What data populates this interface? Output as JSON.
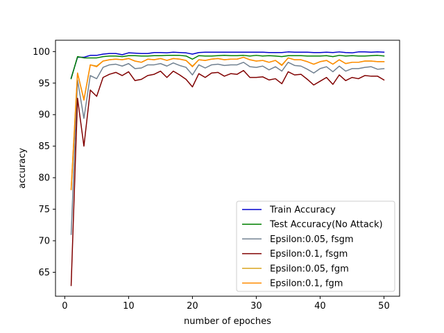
{
  "chart_data": {
    "type": "line",
    "title": "",
    "xlabel": "number of epoches",
    "ylabel": "accuracy",
    "xlim": [
      -1.45,
      52.45
    ],
    "ylim": [
      61.2,
      101.8
    ],
    "xticks": [
      0,
      10,
      20,
      30,
      40,
      50
    ],
    "yticks": [
      65,
      70,
      75,
      80,
      85,
      90,
      95,
      100
    ],
    "grid": false,
    "legend_position": "lower-right",
    "x": [
      1,
      2,
      3,
      4,
      5,
      6,
      7,
      8,
      9,
      10,
      11,
      12,
      13,
      14,
      15,
      16,
      17,
      18,
      19,
      20,
      21,
      22,
      23,
      24,
      25,
      26,
      27,
      28,
      29,
      30,
      31,
      32,
      33,
      34,
      35,
      36,
      37,
      38,
      39,
      40,
      41,
      42,
      43,
      44,
      45,
      46,
      47,
      48,
      49,
      50
    ],
    "series": [
      {
        "name": "Train Accuracy",
        "color": "#0000cd",
        "values": [
          95.8,
          99.1,
          99.1,
          99.4,
          99.4,
          99.6,
          99.7,
          99.7,
          99.5,
          99.8,
          99.75,
          99.7,
          99.7,
          99.85,
          99.85,
          99.8,
          99.9,
          99.85,
          99.8,
          99.6,
          99.85,
          99.9,
          99.9,
          99.9,
          99.9,
          99.9,
          99.9,
          99.9,
          99.9,
          99.9,
          99.9,
          99.85,
          99.85,
          99.85,
          99.95,
          99.9,
          99.9,
          99.9,
          99.85,
          99.85,
          99.9,
          99.85,
          99.95,
          99.85,
          99.8,
          99.95,
          99.95,
          99.9,
          99.95,
          99.9
        ]
      },
      {
        "name": "Test Accuracy(No Attack)",
        "color": "#008000",
        "values": [
          95.7,
          99.2,
          99.0,
          99.0,
          99.0,
          99.2,
          99.3,
          99.3,
          99.2,
          99.35,
          99.35,
          99.3,
          99.3,
          99.35,
          99.35,
          99.4,
          99.4,
          99.4,
          99.3,
          98.8,
          99.35,
          99.3,
          99.3,
          99.35,
          99.4,
          99.35,
          99.35,
          99.4,
          99.3,
          99.4,
          99.3,
          99.35,
          99.3,
          99.2,
          99.35,
          99.35,
          99.35,
          99.3,
          99.3,
          99.3,
          99.35,
          99.2,
          99.4,
          99.3,
          99.35,
          99.3,
          99.3,
          99.35,
          99.4,
          99.3
        ]
      },
      {
        "name": "Epsilon:0.05, fsgm",
        "color": "#708090",
        "values": [
          71.0,
          95.5,
          89.4,
          96.2,
          95.7,
          97.5,
          97.9,
          98.0,
          97.7,
          98.1,
          97.3,
          97.4,
          97.9,
          97.9,
          98.1,
          97.7,
          98.2,
          97.8,
          97.5,
          96.3,
          97.9,
          97.4,
          97.9,
          98.0,
          97.8,
          97.9,
          97.9,
          98.3,
          97.6,
          97.5,
          97.7,
          97.1,
          97.6,
          96.9,
          98.3,
          97.8,
          97.7,
          97.2,
          96.6,
          97.3,
          97.6,
          96.8,
          97.7,
          96.9,
          97.3,
          97.3,
          97.5,
          97.6,
          97.2,
          97.3
        ]
      },
      {
        "name": "Epsilon:0.1, fsgm",
        "color": "#800000",
        "values": [
          62.9,
          92.6,
          85.0,
          93.9,
          92.9,
          95.9,
          96.4,
          96.7,
          96.2,
          96.8,
          95.4,
          95.6,
          96.2,
          96.4,
          96.9,
          95.9,
          96.9,
          96.3,
          95.6,
          94.4,
          96.5,
          95.9,
          96.6,
          96.7,
          96.1,
          96.5,
          96.4,
          97.0,
          95.9,
          95.9,
          96.0,
          95.5,
          95.7,
          94.9,
          96.8,
          96.3,
          96.4,
          95.6,
          94.7,
          95.3,
          95.9,
          94.8,
          96.3,
          95.4,
          95.9,
          95.7,
          96.2,
          96.1,
          96.1,
          95.5
        ]
      },
      {
        "name": "Epsilon:0.05, fgm",
        "color": "#daa520",
        "values": [
          78.2,
          96.6,
          92.4,
          97.9,
          97.7,
          98.5,
          98.7,
          98.8,
          98.7,
          98.9,
          98.5,
          98.3,
          98.8,
          98.7,
          98.9,
          98.6,
          98.9,
          98.8,
          98.6,
          97.7,
          98.7,
          98.6,
          98.8,
          98.9,
          98.7,
          98.8,
          98.8,
          99.1,
          98.7,
          98.5,
          98.6,
          98.3,
          98.6,
          97.9,
          99.0,
          98.7,
          98.7,
          98.4,
          98.0,
          98.4,
          98.6,
          98.0,
          98.7,
          98.1,
          98.3,
          98.3,
          98.5,
          98.5,
          98.4,
          98.4
        ]
      },
      {
        "name": "Epsilon:0.1, fgm",
        "color": "#ff8c00",
        "values": [
          78.1,
          96.6,
          92.3,
          97.9,
          97.6,
          98.5,
          98.7,
          98.8,
          98.7,
          98.9,
          98.5,
          98.3,
          98.8,
          98.7,
          98.9,
          98.6,
          98.9,
          98.8,
          98.6,
          97.6,
          98.7,
          98.6,
          98.8,
          98.9,
          98.7,
          98.8,
          98.8,
          99.1,
          98.7,
          98.5,
          98.6,
          98.3,
          98.6,
          97.8,
          99.0,
          98.7,
          98.7,
          98.4,
          98.0,
          98.4,
          98.6,
          98.0,
          98.7,
          98.1,
          98.3,
          98.3,
          98.5,
          98.5,
          98.4,
          98.4
        ]
      }
    ]
  }
}
